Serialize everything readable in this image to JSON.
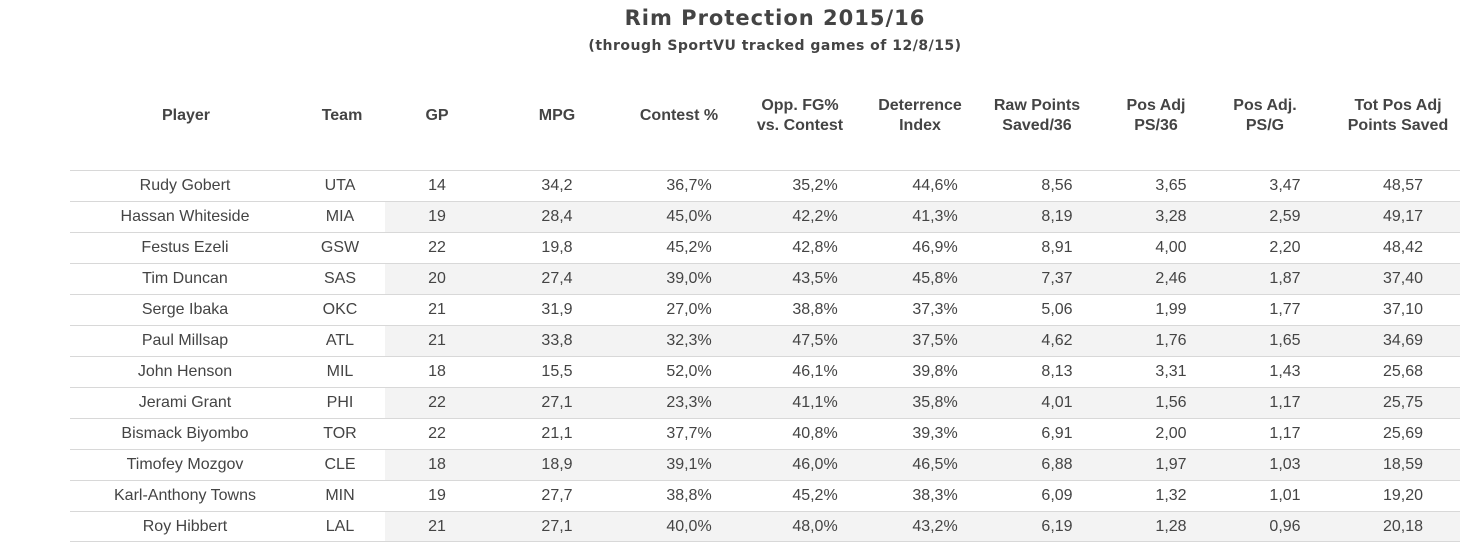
{
  "chart_data": {
    "type": "table",
    "title": "Rim Protection 2015/16",
    "subtitle": "(through SportVU tracked games of 12/8/15)",
    "columns": [
      "Player",
      "Team",
      "GP",
      "MPG",
      "Contest %",
      "Opp. FG%\nvs. Contest",
      "Deterrence\nIndex",
      "Raw Points\nSaved/36",
      "Pos Adj\nPS/36",
      "Pos Adj.\nPS/G",
      "Tot Pos Adj\nPoints Saved"
    ],
    "rows": [
      [
        "Rudy Gobert",
        "UTA",
        "14",
        "34,2",
        "36,7%",
        "35,2%",
        "44,6%",
        "8,56",
        "3,65",
        "3,47",
        "48,57"
      ],
      [
        "Hassan Whiteside",
        "MIA",
        "19",
        "28,4",
        "45,0%",
        "42,2%",
        "41,3%",
        "8,19",
        "3,28",
        "2,59",
        "49,17"
      ],
      [
        "Festus Ezeli",
        "GSW",
        "22",
        "19,8",
        "45,2%",
        "42,8%",
        "46,9%",
        "8,91",
        "4,00",
        "2,20",
        "48,42"
      ],
      [
        "Tim Duncan",
        "SAS",
        "20",
        "27,4",
        "39,0%",
        "43,5%",
        "45,8%",
        "7,37",
        "2,46",
        "1,87",
        "37,40"
      ],
      [
        "Serge Ibaka",
        "OKC",
        "21",
        "31,9",
        "27,0%",
        "38,8%",
        "37,3%",
        "5,06",
        "1,99",
        "1,77",
        "37,10"
      ],
      [
        "Paul Millsap",
        "ATL",
        "21",
        "33,8",
        "32,3%",
        "47,5%",
        "37,5%",
        "4,62",
        "1,76",
        "1,65",
        "34,69"
      ],
      [
        "John Henson",
        "MIL",
        "18",
        "15,5",
        "52,0%",
        "46,1%",
        "39,8%",
        "8,13",
        "3,31",
        "1,43",
        "25,68"
      ],
      [
        "Jerami Grant",
        "PHI",
        "22",
        "27,1",
        "23,3%",
        "41,1%",
        "35,8%",
        "4,01",
        "1,56",
        "1,17",
        "25,75"
      ],
      [
        "Bismack Biyombo",
        "TOR",
        "22",
        "21,1",
        "37,7%",
        "40,8%",
        "39,3%",
        "6,91",
        "2,00",
        "1,17",
        "25,69"
      ],
      [
        "Timofey Mozgov",
        "CLE",
        "18",
        "18,9",
        "39,1%",
        "46,0%",
        "46,5%",
        "6,88",
        "1,97",
        "1,03",
        "18,59"
      ],
      [
        "Karl-Anthony Towns",
        "MIN",
        "19",
        "27,7",
        "38,8%",
        "45,2%",
        "38,3%",
        "6,09",
        "1,32",
        "1,01",
        "19,20"
      ],
      [
        "Roy Hibbert",
        "LAL",
        "21",
        "27,1",
        "40,0%",
        "48,0%",
        "43,2%",
        "6,19",
        "1,28",
        "0,96",
        "20,18"
      ]
    ]
  }
}
